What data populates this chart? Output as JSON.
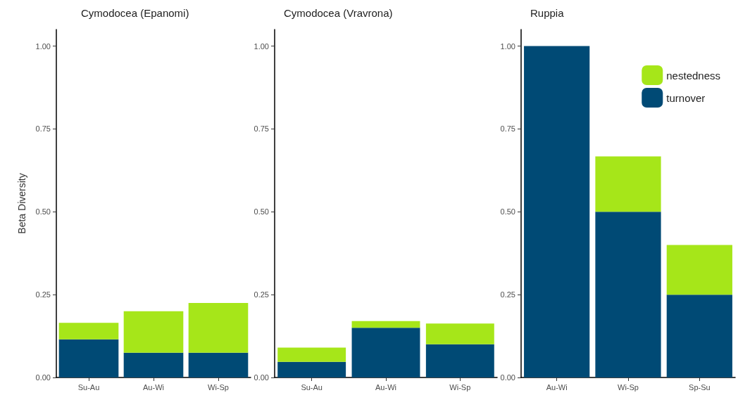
{
  "chart_data": [
    {
      "type": "bar",
      "title": "Cymodocea (Epanomi)",
      "ylabel": "Beta Diversity",
      "categories": [
        "Su-Au",
        "Au-Wi",
        "Wi-Sp"
      ],
      "stacked": true,
      "series": [
        {
          "color": "#004a75",
          "values": [
            0.115,
            0.075,
            0.075
          ]
        },
        {
          "color": "#a6e619",
          "values": [
            0.05,
            0.125,
            0.15
          ]
        }
      ],
      "ylim": [
        0,
        1.05
      ],
      "yticks": [
        {
          "value": 0,
          "label": "0.00"
        },
        {
          "value": 0.25,
          "label": "0.25"
        },
        {
          "value": 0.5,
          "label": "0.50"
        },
        {
          "value": 0.75,
          "label": "0.75"
        },
        {
          "value": 1,
          "label": "1.00"
        }
      ],
      "grid": false
    },
    {
      "type": "bar",
      "title": "Cymodocea (Vravrona)",
      "categories": [
        "Su-Au",
        "Au-Wi",
        "Wi-Sp"
      ],
      "stacked": true,
      "series": [
        {
          "color": "#004a75",
          "values": [
            0.047,
            0.15,
            0.1
          ]
        },
        {
          "color": "#a6e619",
          "values": [
            0.043,
            0.02,
            0.063
          ]
        }
      ],
      "ylim": [
        0,
        1.05
      ],
      "yticks": [
        {
          "value": 0,
          "label": "0.00"
        },
        {
          "value": 0.25,
          "label": "0.25"
        },
        {
          "value": 0.5,
          "label": "0.50"
        },
        {
          "value": 0.75,
          "label": "0.75"
        },
        {
          "value": 1,
          "label": "1.00"
        }
      ],
      "grid": false
    },
    {
      "type": "bar",
      "title": "Ruppia",
      "categories": [
        "Au-Wi",
        "Wi-Sp",
        "Sp-Su"
      ],
      "stacked": true,
      "series": [
        {
          "name": "turnover",
          "color": "#004a75",
          "values": [
            1,
            0.5,
            0.25
          ]
        },
        {
          "name": "nestedness",
          "color": "#a6e619",
          "values": [
            0,
            0.167,
            0.15
          ]
        }
      ],
      "ylim": [
        0,
        1.05
      ],
      "yticks": [
        {
          "value": 0,
          "label": "0.00"
        },
        {
          "value": 0.25,
          "label": "0.25"
        },
        {
          "value": 0.5,
          "label": "0.50"
        },
        {
          "value": 0.75,
          "label": "0.75"
        },
        {
          "value": 1,
          "label": "1.00"
        }
      ],
      "grid": false,
      "legend": "top right"
    }
  ]
}
